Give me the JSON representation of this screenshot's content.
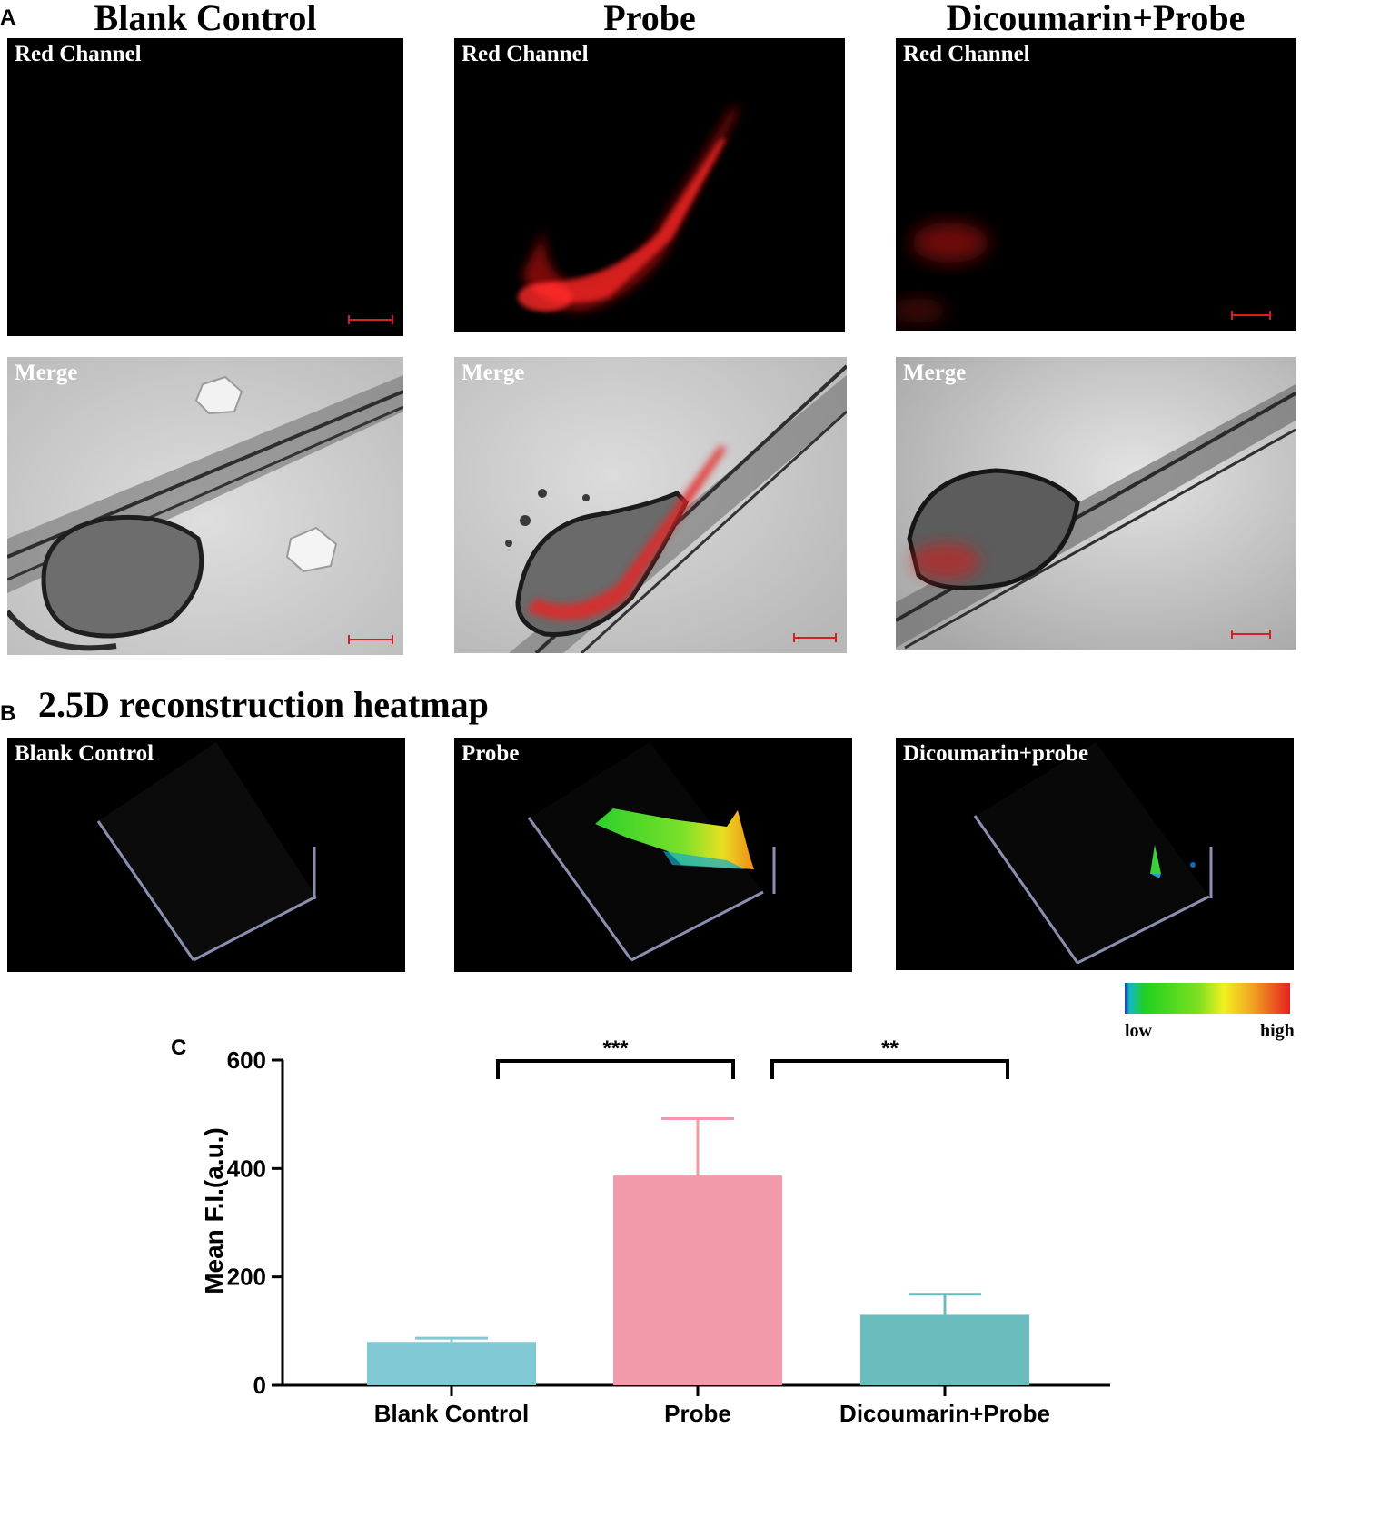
{
  "panel_a": {
    "letter": "A",
    "columns": [
      {
        "title": "Blank Control",
        "red_label": "Red Channel",
        "merge_label": "Merge"
      },
      {
        "title": "Probe",
        "red_label": "Red Channel",
        "merge_label": "Merge"
      },
      {
        "title": "Dicoumarin+Probe",
        "red_label": "Red Channel",
        "merge_label": "Merge"
      }
    ]
  },
  "panel_b": {
    "letter": "B",
    "title": "2.5D reconstruction heatmap",
    "panels": [
      {
        "label": "Blank Control"
      },
      {
        "label": "Probe"
      },
      {
        "label": "Dicoumarin+probe"
      }
    ],
    "colorbar": {
      "low": "low",
      "high": "high"
    }
  },
  "panel_c": {
    "letter": "C"
  },
  "chart_data": {
    "type": "bar",
    "categories": [
      "Blank Control",
      "Probe",
      "Dicoumarin+Probe"
    ],
    "values": [
      80,
      387,
      130
    ],
    "error_upper": [
      87,
      492,
      168
    ],
    "colors": [
      "#80c8d4",
      "#f39aaa",
      "#6bbcbc"
    ],
    "ylabel": "Mean F.I.(a.u.)",
    "ylim": [
      0,
      600
    ],
    "yticks": [
      0,
      200,
      400,
      600
    ],
    "significance": [
      {
        "from": 0,
        "to": 1,
        "label": "***"
      },
      {
        "from": 1,
        "to": 2,
        "label": "**"
      }
    ],
    "grid": false
  }
}
